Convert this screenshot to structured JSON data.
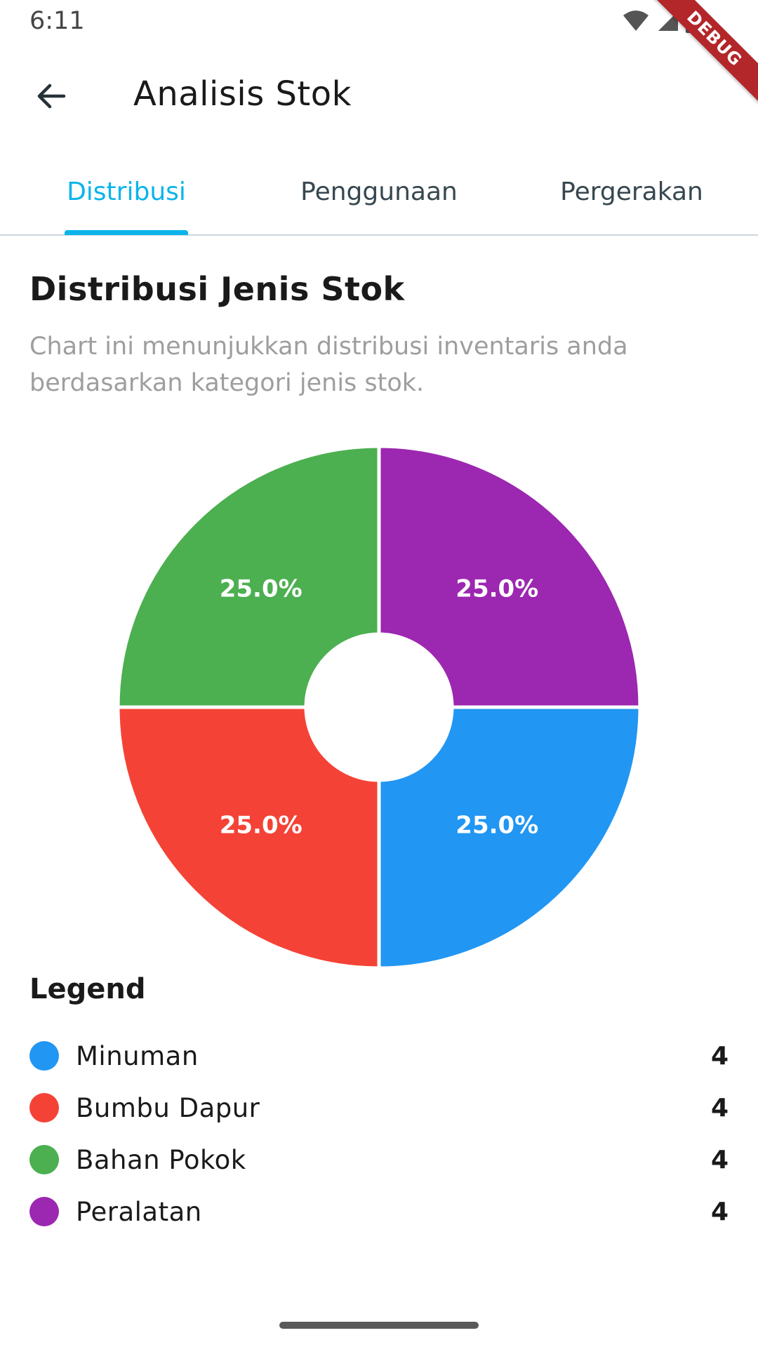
{
  "status_bar": {
    "time": "6:11",
    "icons": [
      "wifi-icon",
      "signal-icon",
      "battery-icon"
    ],
    "debug_label": "DEBUG"
  },
  "app_bar": {
    "title": "Analisis Stok",
    "back_icon": "arrow-back-icon"
  },
  "tabs": [
    {
      "label": "Distribusi",
      "active": true
    },
    {
      "label": "Penggunaan",
      "active": false
    },
    {
      "label": "Pergerakan",
      "active": false
    }
  ],
  "colors": {
    "accent": "#0ab4ea",
    "minuman": "#2196f3",
    "bumbu_dapur": "#f44336",
    "bahan_pokok": "#4caf50",
    "peralatan": "#9c27b0"
  },
  "content": {
    "title": "Distribusi Jenis Stok",
    "description": "Chart ini menunjukkan distribusi inventaris anda berdasarkan kategori jenis stok."
  },
  "chart_data": {
    "type": "pie",
    "donut": true,
    "categories": [
      "Minuman",
      "Bumbu Dapur",
      "Bahan Pokok",
      "Peralatan"
    ],
    "values": [
      4,
      4,
      4,
      4
    ],
    "labels": [
      "25.0%",
      "25.0%",
      "25.0%",
      "25.0%"
    ],
    "colors": [
      "#2196f3",
      "#f44336",
      "#4caf50",
      "#9c27b0"
    ]
  },
  "legend": {
    "title": "Legend",
    "items": [
      {
        "label": "Minuman",
        "value": "4",
        "color": "#2196f3"
      },
      {
        "label": "Bumbu Dapur",
        "value": "4",
        "color": "#f44336"
      },
      {
        "label": "Bahan Pokok",
        "value": "4",
        "color": "#4caf50"
      },
      {
        "label": "Peralatan",
        "value": "4",
        "color": "#9c27b0"
      }
    ]
  }
}
